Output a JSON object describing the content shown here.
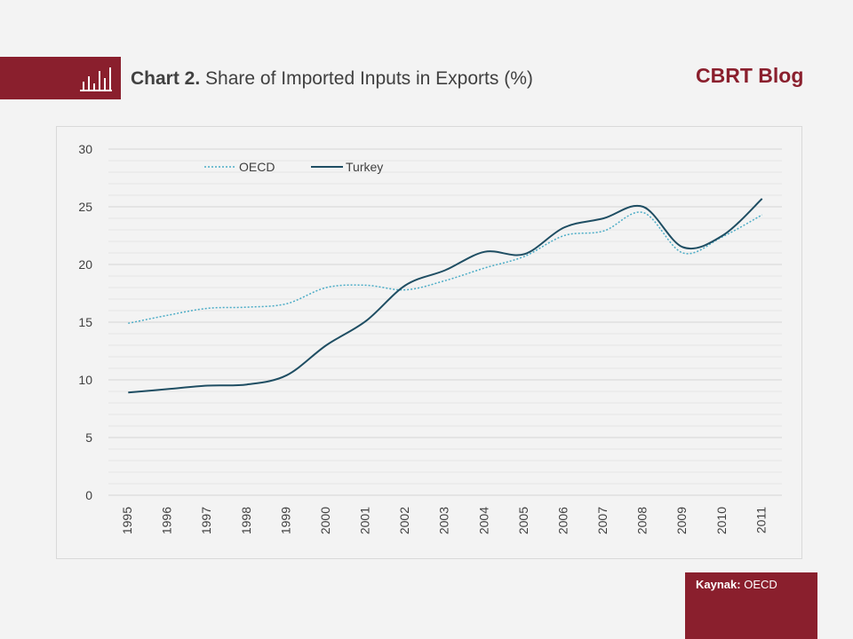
{
  "header": {
    "icon": "bar-chart-icon",
    "accent_color": "#8a1f2d",
    "title_prefix": "Chart 2.",
    "title_text": "Share of Imported Inputs in Exports (%)",
    "brand": "CBRT Blog"
  },
  "source": {
    "label": "Kaynak:",
    "value": "OECD"
  },
  "chart_data": {
    "type": "line",
    "x": [
      "1995",
      "1996",
      "1997",
      "1998",
      "1999",
      "2000",
      "2001",
      "2002",
      "2003",
      "2004",
      "2005",
      "2006",
      "2007",
      "2008",
      "2009",
      "2010",
      "2011"
    ],
    "series": [
      {
        "name": "OECD",
        "style": "dotted",
        "color": "#4bacc6",
        "values": [
          14.9,
          15.6,
          16.2,
          16.3,
          16.6,
          18.0,
          18.2,
          17.8,
          18.6,
          19.7,
          20.7,
          22.5,
          22.9,
          24.5,
          21.0,
          22.4,
          24.3
        ]
      },
      {
        "name": "Turkey",
        "style": "solid",
        "color": "#1f4e63",
        "values": [
          8.9,
          9.2,
          9.5,
          9.6,
          10.4,
          13.0,
          15.1,
          18.2,
          19.5,
          21.1,
          20.9,
          23.2,
          24.0,
          25.0,
          21.5,
          22.5,
          25.7
        ]
      }
    ],
    "ylim": [
      0,
      30
    ],
    "y_ticks": [
      0,
      5,
      10,
      15,
      20,
      25,
      30
    ],
    "grid": true,
    "legend_position": "top-left",
    "xlabel": "",
    "ylabel": ""
  }
}
